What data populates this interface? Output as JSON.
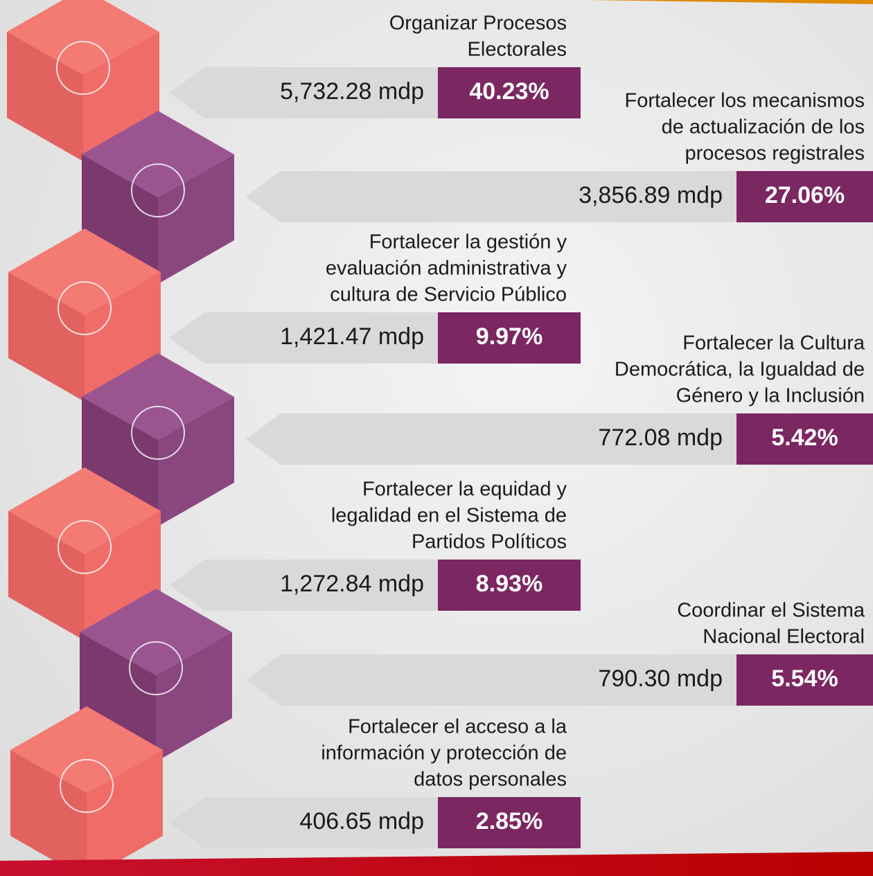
{
  "items": [
    {
      "title": [
        "Organizar Procesos",
        "Electorales"
      ],
      "amount": "5,732.28 mdp",
      "percent": "40.23%"
    },
    {
      "title": [
        "Fortalecer los mecanismos",
        "de actualización de los",
        "procesos registrales"
      ],
      "amount": "3,856.89 mdp",
      "percent": "27.06%"
    },
    {
      "title": [
        "Fortalecer la gestión y",
        "evaluación administrativa y",
        "cultura de Servicio Público"
      ],
      "amount": "1,421.47 mdp",
      "percent": "9.97%"
    },
    {
      "title": [
        "Fortalecer la Cultura",
        "Democrática, la Igualdad de",
        "Género y la Inclusión"
      ],
      "amount": "772.08 mdp",
      "percent": "5.42%"
    },
    {
      "title": [
        "Fortalecer la equidad y",
        "legalidad en el Sistema de",
        "Partidos Políticos"
      ],
      "amount": "1,272.84 mdp",
      "percent": "8.93%"
    },
    {
      "title": [
        "Coordinar el Sistema",
        "Nacional Electoral"
      ],
      "amount": "790.30 mdp",
      "percent": "5.54%"
    },
    {
      "title": [
        "Fortalecer el acceso a la",
        "información y protección de",
        "datos personales"
      ],
      "amount": "406.65 mdp",
      "percent": "2.85%"
    }
  ]
}
